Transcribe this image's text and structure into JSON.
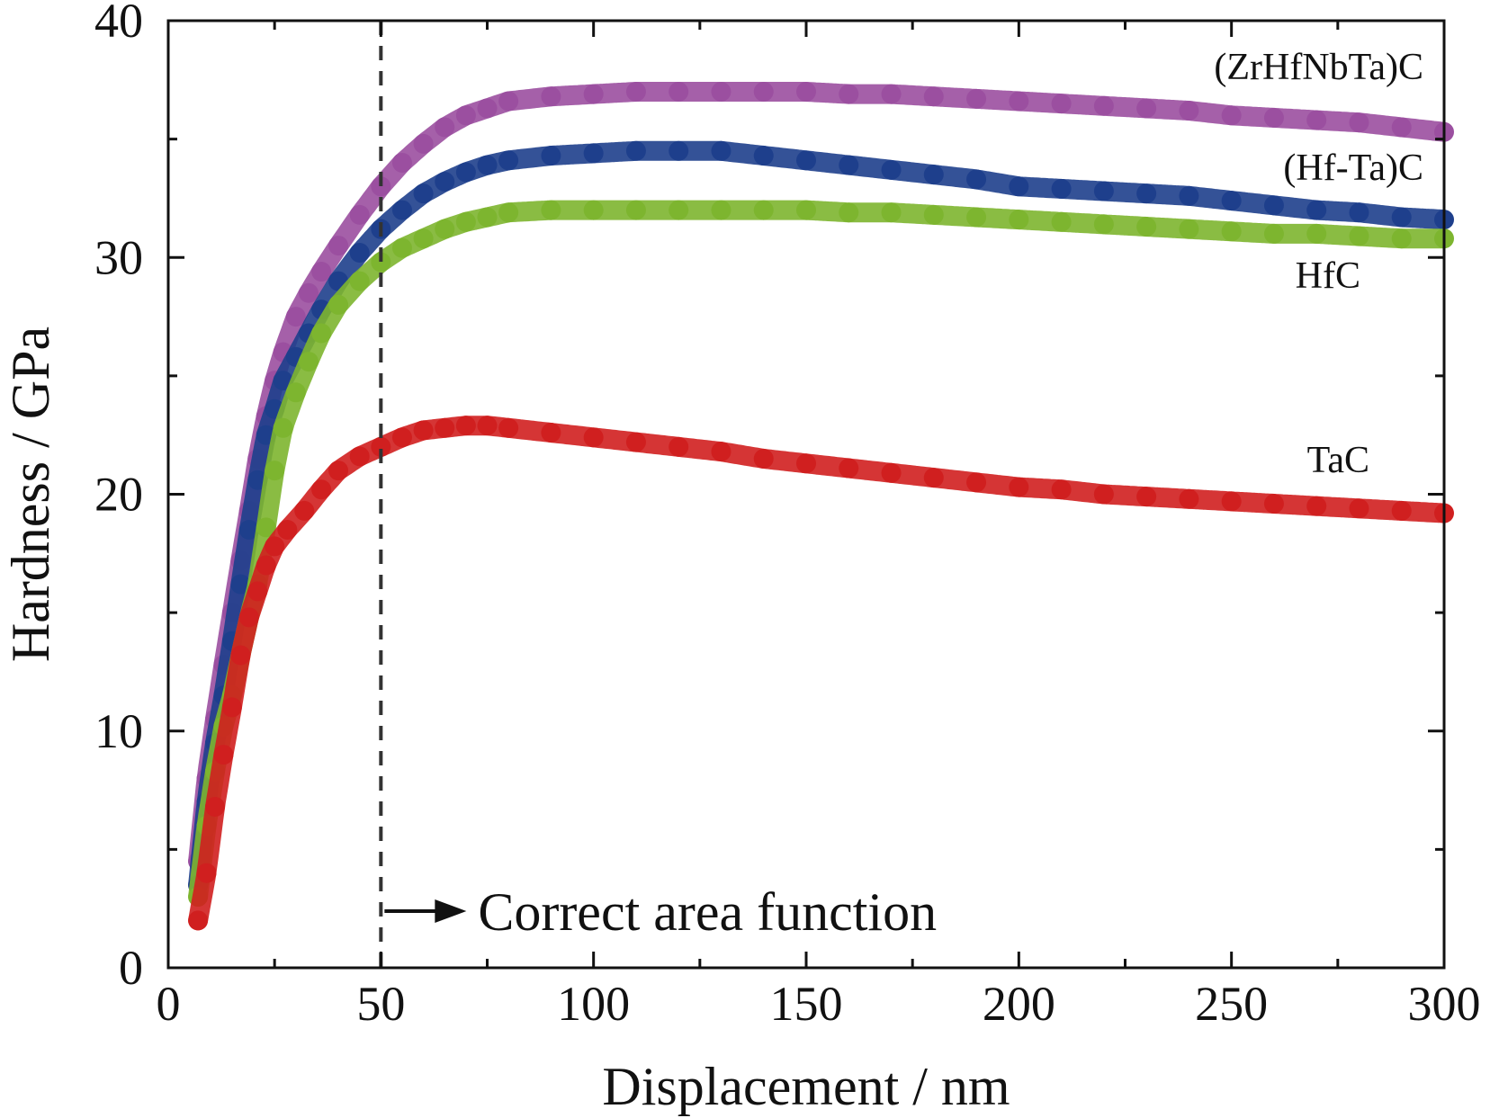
{
  "chart_data": {
    "type": "scatter",
    "title": "",
    "xlabel": "Displacement / nm",
    "ylabel": "Hardness / GPa",
    "xlim": [
      0,
      300
    ],
    "ylim": [
      0,
      40
    ],
    "x_ticks": [
      0,
      50,
      100,
      150,
      200,
      250,
      300
    ],
    "y_ticks": [
      0,
      10,
      20,
      30,
      40
    ],
    "grid": false,
    "legend": "none",
    "annotation": {
      "text": "Correct area function",
      "x": 50
    },
    "series": [
      {
        "name": "(ZrHfNbTa)C",
        "color": "#9b4fa0",
        "x": [
          7,
          9,
          11,
          13,
          15,
          17,
          19,
          21,
          23,
          25,
          27,
          30,
          33,
          36,
          40,
          45,
          50,
          55,
          60,
          65,
          70,
          75,
          80,
          90,
          100,
          110,
          120,
          130,
          140,
          150,
          160,
          170,
          180,
          190,
          200,
          210,
          220,
          230,
          240,
          250,
          260,
          270,
          280,
          290,
          300
        ],
        "y": [
          4.5,
          8.0,
          10.5,
          12.8,
          15.0,
          17.2,
          19.3,
          21.5,
          23.3,
          24.8,
          26.0,
          27.5,
          28.5,
          29.4,
          30.5,
          31.8,
          33.0,
          34.0,
          34.8,
          35.5,
          36.0,
          36.3,
          36.6,
          36.8,
          36.9,
          37.0,
          37.0,
          37.0,
          37.0,
          37.0,
          36.9,
          36.9,
          36.8,
          36.7,
          36.6,
          36.5,
          36.4,
          36.3,
          36.2,
          36.0,
          35.9,
          35.8,
          35.7,
          35.5,
          35.3
        ]
      },
      {
        "name": "(Hf-Ta)C",
        "color": "#1e3f8c",
        "x": [
          7,
          9,
          11,
          13,
          15,
          17,
          19,
          21,
          23,
          25,
          27,
          30,
          33,
          36,
          40,
          45,
          50,
          55,
          60,
          65,
          70,
          75,
          80,
          90,
          100,
          110,
          120,
          130,
          140,
          150,
          160,
          170,
          180,
          190,
          200,
          210,
          220,
          230,
          240,
          250,
          260,
          270,
          280,
          290,
          300
        ],
        "y": [
          3.5,
          7.0,
          9.5,
          11.5,
          13.8,
          16.2,
          18.5,
          20.6,
          22.5,
          23.6,
          24.8,
          25.8,
          26.8,
          27.8,
          29.0,
          30.2,
          31.2,
          32.0,
          32.7,
          33.2,
          33.6,
          33.9,
          34.1,
          34.3,
          34.4,
          34.5,
          34.5,
          34.5,
          34.3,
          34.1,
          33.9,
          33.7,
          33.5,
          33.3,
          33.0,
          32.9,
          32.8,
          32.7,
          32.6,
          32.4,
          32.2,
          32.0,
          31.9,
          31.7,
          31.6
        ]
      },
      {
        "name": "HfC",
        "color": "#7db52f",
        "x": [
          7,
          9,
          11,
          13,
          15,
          17,
          19,
          21,
          23,
          25,
          27,
          30,
          33,
          36,
          40,
          45,
          50,
          55,
          60,
          65,
          70,
          75,
          80,
          90,
          100,
          110,
          120,
          130,
          140,
          150,
          160,
          170,
          180,
          190,
          200,
          210,
          220,
          230,
          240,
          250,
          260,
          270,
          280,
          290,
          300
        ],
        "y": [
          3.0,
          6.0,
          8.3,
          10.2,
          11.5,
          13.2,
          14.8,
          16.2,
          18.6,
          21.0,
          22.8,
          24.3,
          25.6,
          26.8,
          28.0,
          29.0,
          29.8,
          30.4,
          30.8,
          31.2,
          31.5,
          31.7,
          31.9,
          32.0,
          32.0,
          32.0,
          32.0,
          32.0,
          32.0,
          32.0,
          31.9,
          31.9,
          31.8,
          31.7,
          31.6,
          31.5,
          31.4,
          31.3,
          31.2,
          31.1,
          31.0,
          31.0,
          30.9,
          30.8,
          30.8
        ]
      },
      {
        "name": "TaC",
        "color": "#d01f1f",
        "x": [
          7,
          9,
          11,
          13,
          15,
          17,
          19,
          21,
          23,
          25,
          28,
          32,
          36,
          40,
          45,
          50,
          55,
          60,
          65,
          70,
          75,
          80,
          90,
          100,
          110,
          120,
          130,
          140,
          150,
          160,
          170,
          180,
          190,
          200,
          210,
          220,
          230,
          240,
          250,
          260,
          270,
          280,
          290,
          300
        ],
        "y": [
          2.0,
          4.0,
          6.8,
          9.0,
          11.0,
          13.2,
          14.8,
          15.9,
          17.0,
          17.8,
          18.5,
          19.3,
          20.2,
          21.0,
          21.6,
          22.0,
          22.4,
          22.7,
          22.8,
          22.9,
          22.9,
          22.8,
          22.6,
          22.4,
          22.2,
          22.0,
          21.8,
          21.5,
          21.3,
          21.1,
          20.9,
          20.7,
          20.5,
          20.3,
          20.2,
          20.0,
          19.9,
          19.8,
          19.7,
          19.6,
          19.5,
          19.4,
          19.3,
          19.2
        ]
      }
    ]
  }
}
